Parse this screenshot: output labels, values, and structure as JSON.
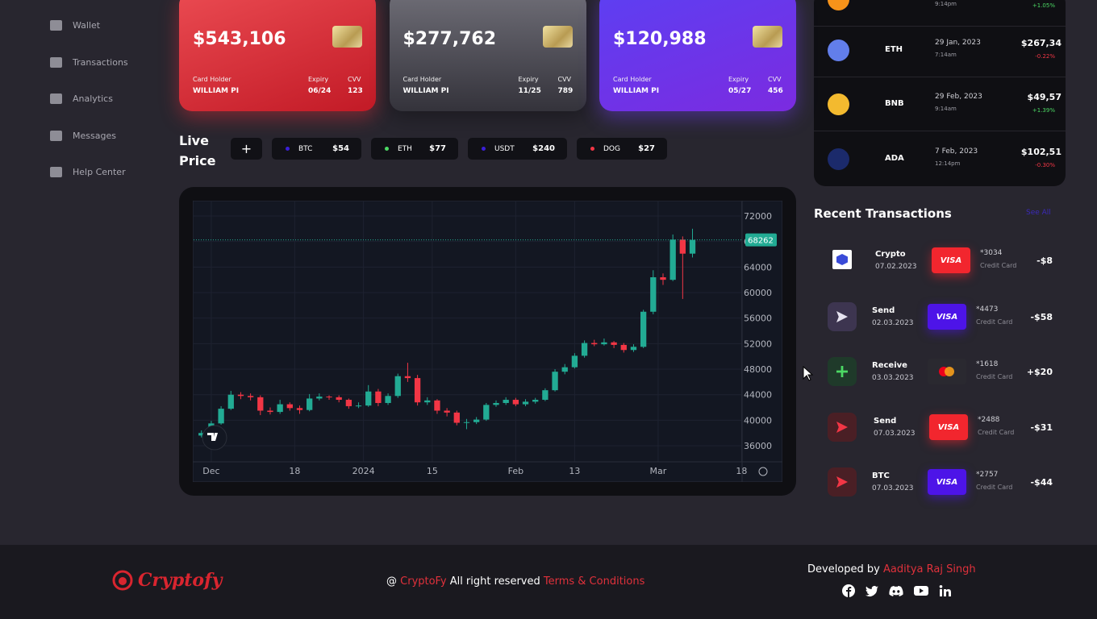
{
  "sidebar": {
    "items": [
      "Wallet",
      "Transactions",
      "Analytics",
      "Messages",
      "Help Center"
    ]
  },
  "cards": [
    {
      "balance": "$543,106",
      "holder_label": "Card Holder",
      "holder": "WILLIAM PI",
      "expiry_label": "Expiry",
      "expiry": "06/24",
      "cvv_label": "CVV",
      "cvv": "123"
    },
    {
      "balance": "$277,762",
      "holder_label": "Card Holder",
      "holder": "WILLIAM PI",
      "expiry_label": "Expiry",
      "expiry": "11/25",
      "cvv_label": "CVV",
      "cvv": "789"
    },
    {
      "balance": "$120,988",
      "holder_label": "Card Holder",
      "holder": "WILLIAM PI",
      "expiry_label": "Expiry",
      "expiry": "05/27",
      "cvv_label": "CVV",
      "cvv": "456"
    }
  ],
  "live_price": {
    "title": "Live Price",
    "add": "+",
    "coins": [
      {
        "name": "BTC",
        "price": "$54",
        "color": "#3a1fd8"
      },
      {
        "name": "ETH",
        "price": "$77",
        "color": "#4cd964"
      },
      {
        "name": "USDT",
        "price": "$240",
        "color": "#3a1fd8"
      },
      {
        "name": "DOG",
        "price": "$27",
        "color": "#f23645"
      }
    ]
  },
  "chart_data": {
    "type": "candlestick",
    "x": [
      -2,
      0,
      2,
      4,
      6,
      8,
      10,
      12,
      14,
      16,
      18,
      20,
      22,
      24,
      26,
      28,
      30,
      32,
      34,
      36,
      38,
      40,
      42,
      44,
      46,
      48,
      50,
      52,
      54,
      56,
      58,
      60,
      62,
      64,
      66,
      68,
      70,
      72,
      74,
      76,
      78,
      80,
      82,
      84,
      86,
      88,
      90,
      92,
      94,
      96,
      98
    ],
    "open": [
      37600,
      38000,
      39500,
      41800,
      44000,
      43800,
      43600,
      41500,
      41300,
      42500,
      41900,
      41600,
      43400,
      43700,
      43600,
      43200,
      42200,
      42300,
      44500,
      42700,
      43800,
      46900,
      46600,
      42800,
      43100,
      41500,
      41200,
      39600,
      39700,
      40100,
      42400,
      42700,
      43200,
      42500,
      42900,
      43200,
      44700,
      47600,
      48300,
      50100,
      52100,
      51900,
      52200,
      51800,
      51000,
      51500,
      57000,
      62400,
      62000,
      68300,
      66100
    ],
    "high": [
      38400,
      39900,
      42200,
      44600,
      44400,
      44200,
      43900,
      42000,
      43200,
      42800,
      42300,
      44100,
      44200,
      43900,
      43900,
      43400,
      42800,
      45500,
      44900,
      44200,
      47300,
      49000,
      47100,
      43600,
      43300,
      41900,
      41500,
      40200,
      40500,
      42700,
      43100,
      43600,
      43500,
      43300,
      43500,
      45000,
      48000,
      48800,
      50500,
      52500,
      52600,
      52800,
      52400,
      52100,
      51900,
      57300,
      63500,
      63000,
      69100,
      68800,
      70000
    ],
    "low": [
      37300,
      37800,
      39300,
      41600,
      43300,
      43100,
      40800,
      40900,
      41000,
      41500,
      41000,
      41400,
      43100,
      43200,
      42800,
      41800,
      41900,
      42100,
      42200,
      42400,
      43500,
      46000,
      42300,
      42400,
      41000,
      40600,
      39200,
      38600,
      39400,
      39900,
      42100,
      42400,
      42200,
      42200,
      42600,
      43000,
      44500,
      47200,
      48100,
      49800,
      51600,
      51700,
      51300,
      50600,
      50700,
      51300,
      56600,
      61200,
      61800,
      59000,
      65500
    ],
    "close": [
      38000,
      39500,
      41800,
      44000,
      43800,
      43600,
      41500,
      41300,
      42500,
      41900,
      41600,
      43400,
      43700,
      43600,
      43200,
      42200,
      42300,
      44500,
      42700,
      43800,
      46900,
      46600,
      42800,
      43100,
      41500,
      41200,
      39600,
      39700,
      40100,
      42400,
      42700,
      43200,
      42500,
      42900,
      43200,
      44700,
      47600,
      48300,
      50100,
      52100,
      51900,
      52200,
      51800,
      51000,
      51500,
      57000,
      62400,
      62000,
      68300,
      66100,
      68262
    ],
    "last_price": 68262,
    "up_color": "#22ab94",
    "down_color": "#f23645",
    "grid": true,
    "xlim": [
      -3.6,
      108.1
    ],
    "xticks": [
      {
        "value": 0,
        "label": "Dec"
      },
      {
        "value": 17,
        "label": "18"
      },
      {
        "value": 31,
        "label": "2024"
      },
      {
        "value": 45,
        "label": "15"
      },
      {
        "value": 62,
        "label": "Feb"
      },
      {
        "value": 74,
        "label": "13"
      },
      {
        "value": 91,
        "label": "Mar"
      },
      {
        "value": 108,
        "label": "18"
      }
    ],
    "ylim": [
      33480,
      74270
    ],
    "yticks": [
      36000,
      40000,
      44000,
      48000,
      52000,
      56000,
      60000,
      64000,
      68000,
      72000
    ]
  },
  "coin_list": [
    {
      "time": "9:14pm",
      "change": "+1.05%"
    },
    {
      "name": "ETH",
      "date": "29 Jan, 2023",
      "time": "7:14am",
      "price": "$267,34",
      "change": "-0.22%"
    },
    {
      "name": "BNB",
      "date": "29 Feb, 2023",
      "time": "9:14am",
      "price": "$49,57",
      "change": "+1.39%"
    },
    {
      "name": "ADA",
      "date": "7 Feb, 2023",
      "time": "12:14pm",
      "price": "$102,51",
      "change": "-0.30%"
    }
  ],
  "transactions": {
    "title": "Recent Transactions",
    "see_all": "See All",
    "rows": [
      {
        "type": "Crypto",
        "date": "07.02.2023",
        "brand": "VISA",
        "card": "*3034",
        "card_type": "Credit Card",
        "amount": "-$8"
      },
      {
        "type": "Send",
        "date": "02.03.2023",
        "brand": "VISA",
        "card": "*4473",
        "card_type": "Credit Card",
        "amount": "-$58"
      },
      {
        "type": "Receive",
        "date": "03.03.2023",
        "card": "*1618",
        "card_type": "Credit Card",
        "amount": "+$20"
      },
      {
        "type": "Send",
        "date": "07.03.2023",
        "brand": "VISA",
        "card": "*2488",
        "card_type": "Credit Card",
        "amount": "-$31"
      },
      {
        "type": "BTC",
        "date": "07.03.2023",
        "brand": "VISA",
        "card": "*2757",
        "card_type": "Credit Card",
        "amount": "-$44"
      }
    ]
  },
  "footer": {
    "logo": "Cryptofy",
    "at": "@",
    "brand": "CryptoFy",
    "rights": "All right reserved",
    "terms": "Terms & Conditions",
    "developed_by": "Developed by",
    "author": "Aaditya Raj Singh"
  }
}
